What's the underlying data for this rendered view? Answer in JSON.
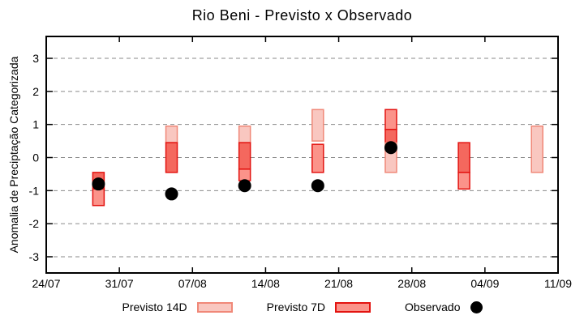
{
  "chart_data": {
    "type": "bar",
    "title": "Rio Beni - Previsto x Observado",
    "ylabel": "Anomalia de Preciptação Categorizada",
    "xlabel": "",
    "yticks": [
      3,
      2,
      1,
      0,
      -1,
      -2,
      -3
    ],
    "ylim": [
      -3.5,
      3.65
    ],
    "xticks": [
      "24/07",
      "31/07",
      "07/08",
      "14/08",
      "21/08",
      "28/08",
      "04/09",
      "11/09"
    ],
    "xtick_days": [
      0,
      7,
      14,
      21,
      28,
      35,
      42,
      49
    ],
    "grid": "horizontal-dashed",
    "legend_position": "bottom-outside",
    "legend": [
      {
        "label": "Previsto 14D",
        "swatch": "light-box"
      },
      {
        "label": "Previsto 7D",
        "swatch": "red-box"
      },
      {
        "label": "Observado",
        "swatch": "black-dot"
      }
    ],
    "colors": {
      "light_fill": "#f9c7c0",
      "light_border": "#f08878",
      "mid_fill": "#fb938a",
      "mid_border": "#e31310",
      "dark_fill": "#f4685e",
      "dark_border": "#e31310",
      "dot": "#000000",
      "grid": "#8a8a8a",
      "axis": "#000000"
    },
    "bars": [
      {
        "date": "29/07",
        "day": 5,
        "segments": [
          {
            "from": -0.45,
            "to": -0.95,
            "style": "dark"
          },
          {
            "from": -0.95,
            "to": -1.45,
            "style": "mid"
          }
        ],
        "observed": -0.8
      },
      {
        "date": "05/08",
        "day": 12,
        "segments": [
          {
            "from": 0.95,
            "to": 0.45,
            "style": "light"
          },
          {
            "from": 0.45,
            "to": -0.45,
            "style": "dark"
          }
        ],
        "observed": -1.1
      },
      {
        "date": "12/08",
        "day": 19,
        "segments": [
          {
            "from": 0.95,
            "to": 0.45,
            "style": "light"
          },
          {
            "from": 0.45,
            "to": -0.35,
            "style": "dark"
          },
          {
            "from": -0.35,
            "to": -0.7,
            "style": "mid"
          }
        ],
        "observed": -0.85
      },
      {
        "date": "19/08",
        "day": 26,
        "segments": [
          {
            "from": 1.45,
            "to": 0.5,
            "style": "light"
          },
          {
            "from": 0.4,
            "to": -0.45,
            "style": "mid"
          }
        ],
        "observed": -0.85
      },
      {
        "date": "26/08",
        "day": 33,
        "segments": [
          {
            "from": 1.45,
            "to": 0.85,
            "style": "mid"
          },
          {
            "from": 0.85,
            "to": 0.45,
            "style": "dark"
          },
          {
            "from": 0.45,
            "to": -0.45,
            "style": "light"
          }
        ],
        "observed": 0.3
      },
      {
        "date": "02/09",
        "day": 40,
        "segments": [
          {
            "from": 0.45,
            "to": -0.45,
            "style": "dark"
          },
          {
            "from": -0.45,
            "to": -0.95,
            "style": "mid"
          }
        ],
        "observed": null
      },
      {
        "date": "09/09",
        "day": 47,
        "segments": [
          {
            "from": 0.95,
            "to": -0.45,
            "style": "light"
          }
        ],
        "observed": null
      }
    ]
  }
}
